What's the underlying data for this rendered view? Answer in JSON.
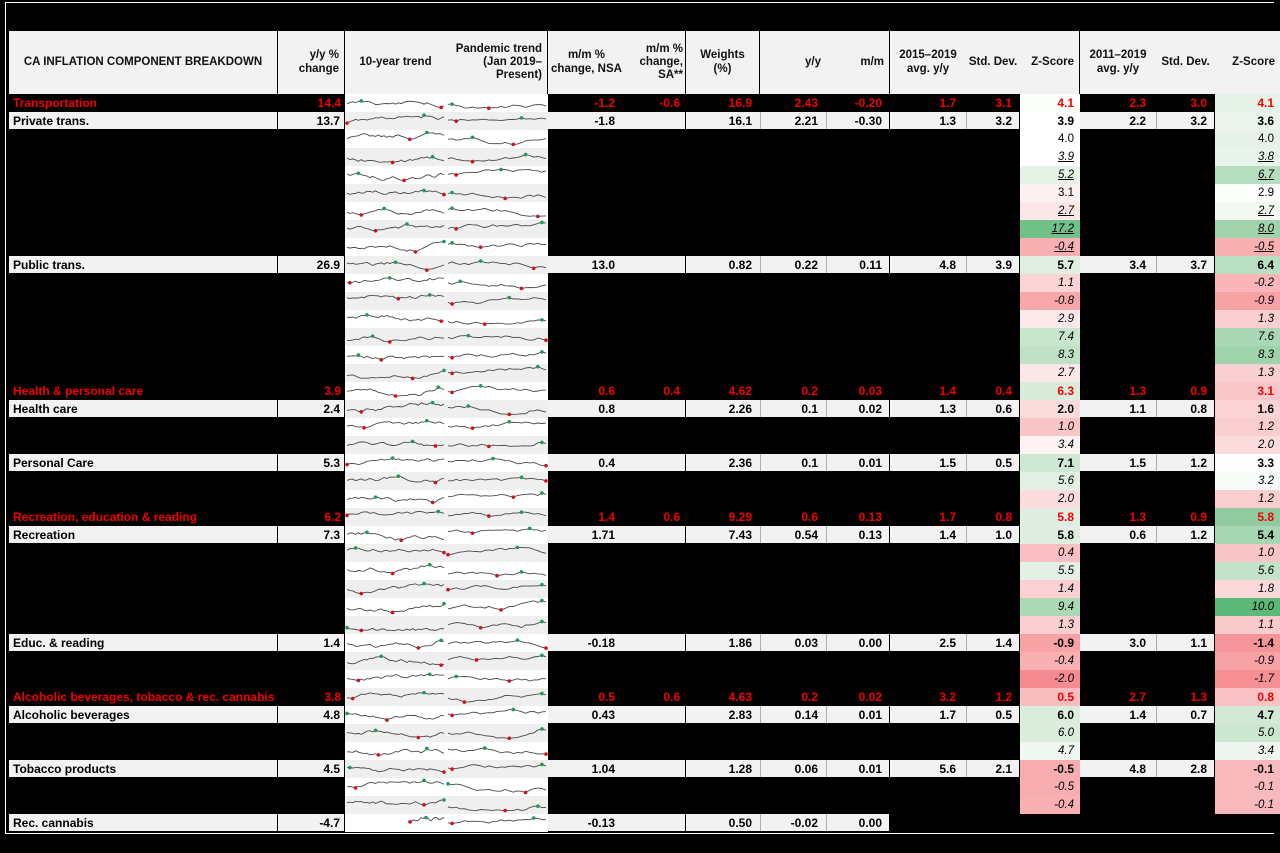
{
  "title": "CA INFLATION COMPONENT BREAKDOWN",
  "chart_data": {
    "type": "table",
    "notes": "Canada inflation component breakdown table. Sparkline columns show 10-year and pandemic-era (Jan 2019-present) trend mini line charts per component with red markers at lows and green markers at highs. Rows with empty labels are blacked-out/redacted rows whose Z-Score cells remain visible. Z-Score cells use red-white-green conditional formatting.",
    "columns": [
      {
        "name": "label",
        "label": "CA INFLATION COMPONENT BREAKDOWN"
      },
      {
        "name": "yy_change",
        "label": "y/y %\nchange"
      },
      {
        "name": "trend10",
        "label": "10-year trend"
      },
      {
        "name": "pandemic",
        "label": "Pandemic trend\n(Jan 2019–Present)"
      },
      {
        "name": "mm_nsa",
        "label": "m/m %\nchange, NSA"
      },
      {
        "name": "mm_sa",
        "label": "m/m %\nchange, SA**"
      },
      {
        "name": "weights",
        "label": "Weights\n(%)"
      },
      {
        "name": "yy",
        "label": "y/y"
      },
      {
        "name": "mm",
        "label": "m/m"
      },
      {
        "name": "avg15",
        "label": "2015–2019\navg. y/y"
      },
      {
        "name": "std15",
        "label": "Std. Dev."
      },
      {
        "name": "z15",
        "label": "Z-Score"
      },
      {
        "name": "avg11",
        "label": "2011–2019\navg. y/y"
      },
      {
        "name": "std11",
        "label": "Std. Dev."
      },
      {
        "name": "z11",
        "label": "Z-Score"
      }
    ],
    "rows": [
      {
        "type": "cat",
        "label": "Transportation",
        "yy_change": "14.4",
        "mm_nsa": "-1.2",
        "mm_sa": "-0.6",
        "weights": "16.9",
        "yy": "2.43",
        "mm": "-0.20",
        "avg15": "1.7",
        "std15": "3.1",
        "z15": "4.1",
        "z15_bg": "#fcfefc",
        "avg11": "2.3",
        "std11": "3.0",
        "z11": "4.1",
        "z11_bg": "#e4f1e6",
        "zstyle": ""
      },
      {
        "type": "sub",
        "label": "Private trans.",
        "yy_change": "13.7",
        "mm_nsa": "-1.8",
        "mm_sa": "",
        "weights": "16.1",
        "yy": "2.21",
        "mm": "-0.30",
        "avg15": "1.3",
        "std15": "3.2",
        "z15": "3.9",
        "z15_bg": "#ffffff",
        "avg11": "2.2",
        "std11": "3.2",
        "z11": "3.6",
        "z11_bg": "#eaf4eb",
        "zstyle": ""
      },
      {
        "type": "hidden",
        "label": "",
        "z15": "4.0",
        "z15_bg": "#ffffff",
        "z11": "4.0",
        "z11_bg": "#e6f2e8",
        "zstyle": ""
      },
      {
        "type": "hidden",
        "label": "",
        "z15": "3.9",
        "z15_bg": "#ffffff",
        "z11": "3.8",
        "z11_bg": "#e8f3e9",
        "zstyle": "und"
      },
      {
        "type": "hidden",
        "label": "",
        "z15": "5.2",
        "z15_bg": "#e6f2e8",
        "z11": "6.7",
        "z11_bg": "#b5debe",
        "zstyle": "und"
      },
      {
        "type": "hidden",
        "label": "",
        "z15": "3.1",
        "z15_bg": "#fdf0f0",
        "z11": "2.9",
        "z11_bg": "#fcfefc",
        "zstyle": ""
      },
      {
        "type": "hidden",
        "label": "",
        "z15": "2.7",
        "z15_bg": "#fbe7e7",
        "z11": "2.7",
        "z11_bg": "#f2f9f3",
        "zstyle": "und"
      },
      {
        "type": "hidden",
        "label": "",
        "z15": "17.2",
        "z15_bg": "#70c088",
        "z11": "8.0",
        "z11_bg": "#a0d3ac",
        "zstyle": "und"
      },
      {
        "type": "hidden",
        "label": "",
        "z15": "-0.4",
        "z15_bg": "#f8b0b3",
        "z11": "-0.5",
        "z11_bg": "#f8b0b3",
        "zstyle": "und"
      },
      {
        "type": "sub",
        "label": "Public trans.",
        "yy_change": "26.9",
        "mm_nsa": "13.0",
        "mm_sa": "",
        "weights": "0.82",
        "yy": "0.22",
        "mm": "0.11",
        "avg15": "4.8",
        "std15": "3.9",
        "z15": "5.7",
        "z15_bg": "#e0efe2",
        "avg11": "3.4",
        "std11": "3.7",
        "z11": "6.4",
        "z11_bg": "#b9dfc2",
        "zstyle": ""
      },
      {
        "type": "hidden",
        "label": "",
        "z15": "1.1",
        "z15_bg": "#fad4d5",
        "z11": "-0.2",
        "z11_bg": "#f9b5b8",
        "zstyle": "ital"
      },
      {
        "type": "hidden",
        "label": "",
        "z15": "-0.8",
        "z15_bg": "#f7a6a9",
        "z11": "-0.9",
        "z11_bg": "#f7a3a6",
        "zstyle": "ital"
      },
      {
        "type": "hidden",
        "label": "",
        "z15": "2.9",
        "z15_bg": "#fceaea",
        "z11": "1.3",
        "z11_bg": "#facfd1",
        "zstyle": "ital"
      },
      {
        "type": "hidden",
        "label": "",
        "z15": "7.4",
        "z15_bg": "#c8e5ce",
        "z11": "7.6",
        "z11_bg": "#aad7b5",
        "zstyle": "ital"
      },
      {
        "type": "hidden",
        "label": "",
        "z15": "8.3",
        "z15_bg": "#bfe2c6",
        "z11": "8.3",
        "z11_bg": "#9fd3ab",
        "zstyle": "ital"
      },
      {
        "type": "hidden",
        "label": "",
        "z15": "2.7",
        "z15_bg": "#fbe7e7",
        "z11": "1.3",
        "z11_bg": "#facfd1",
        "zstyle": "ital"
      },
      {
        "type": "cat",
        "label": "Health & personal care",
        "yy_change": "3.9",
        "mm_nsa": "0.6",
        "mm_sa": "0.4",
        "weights": "4.62",
        "yy": "0.2",
        "mm": "0.03",
        "avg15": "1.4",
        "std15": "0.4",
        "z15": "6.3",
        "z15_bg": "#d9ecdb",
        "avg11": "1.3",
        "std11": "0.9",
        "z11": "3.1",
        "z11_bg": "#f9c7c9",
        "zstyle": ""
      },
      {
        "type": "sub",
        "label": "Health care",
        "yy_change": "2.4",
        "mm_nsa": "0.8",
        "mm_sa": "",
        "weights": "2.26",
        "yy": "0.1",
        "mm": "0.02",
        "avg15": "1.3",
        "std15": "0.6",
        "z15": "2.0",
        "z15_bg": "#fbdcdd",
        "avg11": "1.1",
        "std11": "0.8",
        "z11": "1.6",
        "z11_bg": "#fad4d5",
        "zstyle": ""
      },
      {
        "type": "hidden",
        "label": "",
        "z15": "1.0",
        "z15_bg": "#f9c5c7",
        "z11": "1.2",
        "z11_bg": "#facdcf",
        "zstyle": "ital"
      },
      {
        "type": "hidden",
        "label": "",
        "z15": "3.4",
        "z15_bg": "#fdf3f3",
        "z11": "2.0",
        "z11_bg": "#fbdcdd",
        "zstyle": "ital"
      },
      {
        "type": "sub",
        "label": "Personal Care",
        "yy_change": "5.3",
        "mm_nsa": "0.4",
        "mm_sa": "",
        "weights": "2.36",
        "yy": "0.1",
        "mm": "0.01",
        "avg15": "1.5",
        "std15": "0.5",
        "z15": "7.1",
        "z15_bg": "#cfe8d3",
        "avg11": "1.5",
        "std11": "1.2",
        "z11": "3.3",
        "z11_bg": "#fdfefd",
        "zstyle": ""
      },
      {
        "type": "hidden",
        "label": "",
        "z15": "5.6",
        "z15_bg": "#e2f0e4",
        "z11": "3.2",
        "z11_bg": "#f6fbf7",
        "zstyle": "ital"
      },
      {
        "type": "hidden",
        "label": "",
        "z15": "2.0",
        "z15_bg": "#fbdcdd",
        "z11": "1.2",
        "z11_bg": "#facdcf",
        "zstyle": "ital"
      },
      {
        "type": "cat",
        "label": "Recreation, education & reading",
        "yy_change": "6.2",
        "mm_nsa": "1.4",
        "mm_sa": "0.6",
        "weights": "9.29",
        "yy": "0.6",
        "mm": "0.13",
        "avg15": "1.7",
        "std15": "0.8",
        "z15": "5.8",
        "z15_bg": "#dfeee1",
        "avg11": "1.3",
        "std11": "0.9",
        "z11": "5.8",
        "z11_bg": "#8fcb9e",
        "zstyle": ""
      },
      {
        "type": "sub",
        "label": "Recreation",
        "yy_change": "7.3",
        "mm_nsa": "1.71",
        "mm_sa": "",
        "weights": "7.43",
        "yy": "0.54",
        "mm": "0.13",
        "avg15": "1.4",
        "std15": "1.0",
        "z15": "5.8",
        "z15_bg": "#dfeee1",
        "avg11": "0.6",
        "std11": "1.2",
        "z11": "5.4",
        "z11_bg": "#a7d6b2",
        "zstyle": ""
      },
      {
        "type": "hidden",
        "label": "",
        "z15": "0.4",
        "z15_bg": "#f9bfc2",
        "z11": "1.0",
        "z11_bg": "#f9c5c7",
        "zstyle": "ital"
      },
      {
        "type": "hidden",
        "label": "",
        "z15": "5.5",
        "z15_bg": "#e3f0e5",
        "z11": "5.6",
        "z11_bg": "#c2e3c9",
        "zstyle": "ital"
      },
      {
        "type": "hidden",
        "label": "",
        "z15": "1.4",
        "z15_bg": "#fad0d2",
        "z11": "1.8",
        "z11_bg": "#fbd8d9",
        "zstyle": "ital"
      },
      {
        "type": "hidden",
        "label": "",
        "z15": "9.4",
        "z15_bg": "#abd8b5",
        "z11": "10.0",
        "z11_bg": "#5bb878",
        "zstyle": "ital"
      },
      {
        "type": "hidden",
        "label": "",
        "z15": "1.3",
        "z15_bg": "#facfd1",
        "z11": "1.1",
        "z11_bg": "#f9cacc",
        "zstyle": "ital"
      },
      {
        "type": "sub",
        "label": "Educ. & reading",
        "yy_change": "1.4",
        "mm_nsa": "-0.18",
        "mm_sa": "",
        "weights": "1.86",
        "yy": "0.03",
        "mm": "0.00",
        "avg15": "2.5",
        "std15": "1.4",
        "z15": "-0.9",
        "z15_bg": "#f7a3a6",
        "avg11": "3.0",
        "std11": "1.1",
        "z11": "-1.4",
        "z11_bg": "#f69599",
        "zstyle": ""
      },
      {
        "type": "hidden",
        "label": "",
        "z15": "-0.4",
        "z15_bg": "#f8b0b3",
        "z11": "-0.9",
        "z11_bg": "#f7a3a6",
        "zstyle": "ital"
      },
      {
        "type": "hidden",
        "label": "",
        "z15": "-2.0",
        "z15_bg": "#f58b90",
        "z11": "-1.7",
        "z11_bg": "#f68f94",
        "zstyle": "ital"
      },
      {
        "type": "cat",
        "label": "Alcoholic beverages, tobacco & rec. cannabis",
        "yy_change": "3.8",
        "mm_nsa": "0.5",
        "mm_sa": "0.6",
        "weights": "4.63",
        "yy": "0.2",
        "mm": "0.02",
        "avg15": "3.2",
        "std15": "1.2",
        "z15": "0.5",
        "z15_bg": "#f9bdc0",
        "avg11": "2.7",
        "std11": "1.3",
        "z11": "0.8",
        "z11_bg": "#f9c2c4",
        "zstyle": ""
      },
      {
        "type": "sub",
        "label": "Alcoholic beverages",
        "yy_change": "4.8",
        "mm_nsa": "0.43",
        "mm_sa": "",
        "weights": "2.83",
        "yy": "0.14",
        "mm": "0.01",
        "avg15": "1.7",
        "std15": "0.5",
        "z15": "6.0",
        "z15_bg": "#dcedde",
        "avg11": "1.4",
        "std11": "0.7",
        "z11": "4.7",
        "z11_bg": "#d2e9d6",
        "zstyle": ""
      },
      {
        "type": "hidden",
        "label": "",
        "z15": "6.0",
        "z15_bg": "#dcedde",
        "z11": "5.0",
        "z11_bg": "#cce6d1",
        "zstyle": "ital"
      },
      {
        "type": "hidden",
        "label": "",
        "z15": "4.7",
        "z15_bg": "#f0f7f1",
        "z11": "3.4",
        "z11_bg": "#eef6ef",
        "zstyle": "ital"
      },
      {
        "type": "sub",
        "label": "Tobacco products",
        "yy_change": "4.5",
        "mm_nsa": "1.04",
        "mm_sa": "",
        "weights": "1.28",
        "yy": "0.06",
        "mm": "0.01",
        "avg15": "5.6",
        "std15": "2.1",
        "z15": "-0.5",
        "z15_bg": "#f8aeb1",
        "avg11": "4.8",
        "std11": "2.8",
        "z11": "-0.1",
        "z11_bg": "#f8b9bc",
        "zstyle": ""
      },
      {
        "type": "hidden",
        "label": "",
        "z15": "-0.5",
        "z15_bg": "#f8aeb1",
        "z11": "-0.1",
        "z11_bg": "#f8b9bc",
        "zstyle": "ital"
      },
      {
        "type": "hidden",
        "label": "",
        "z15": "-0.4",
        "z15_bg": "#f8b0b3",
        "z11": "-0.1",
        "z11_bg": "#f8b9bc",
        "zstyle": "ital"
      },
      {
        "type": "sub",
        "label": "Rec. cannabis",
        "yy_change": "-4.7",
        "mm_nsa": "-0.13",
        "mm_sa": "",
        "weights": "0.50",
        "yy": "-0.02",
        "mm": "0.00",
        "avg15": null,
        "std15": null,
        "z15": null,
        "z15_bg": null,
        "avg11": null,
        "std11": null,
        "z11": null,
        "z11_bg": null,
        "zstyle": "",
        "short10": true
      }
    ],
    "colors": {
      "category_text": "#f20000",
      "cell_bg": "#f2f2f2",
      "band_bg": "#efefef",
      "z_green_strong": "#5bb878",
      "z_red_strong": "#f58b90",
      "spark_line": "#4a4a4a",
      "spark_low_marker": "#cc1122",
      "spark_high_marker": "#1d9a57"
    }
  }
}
